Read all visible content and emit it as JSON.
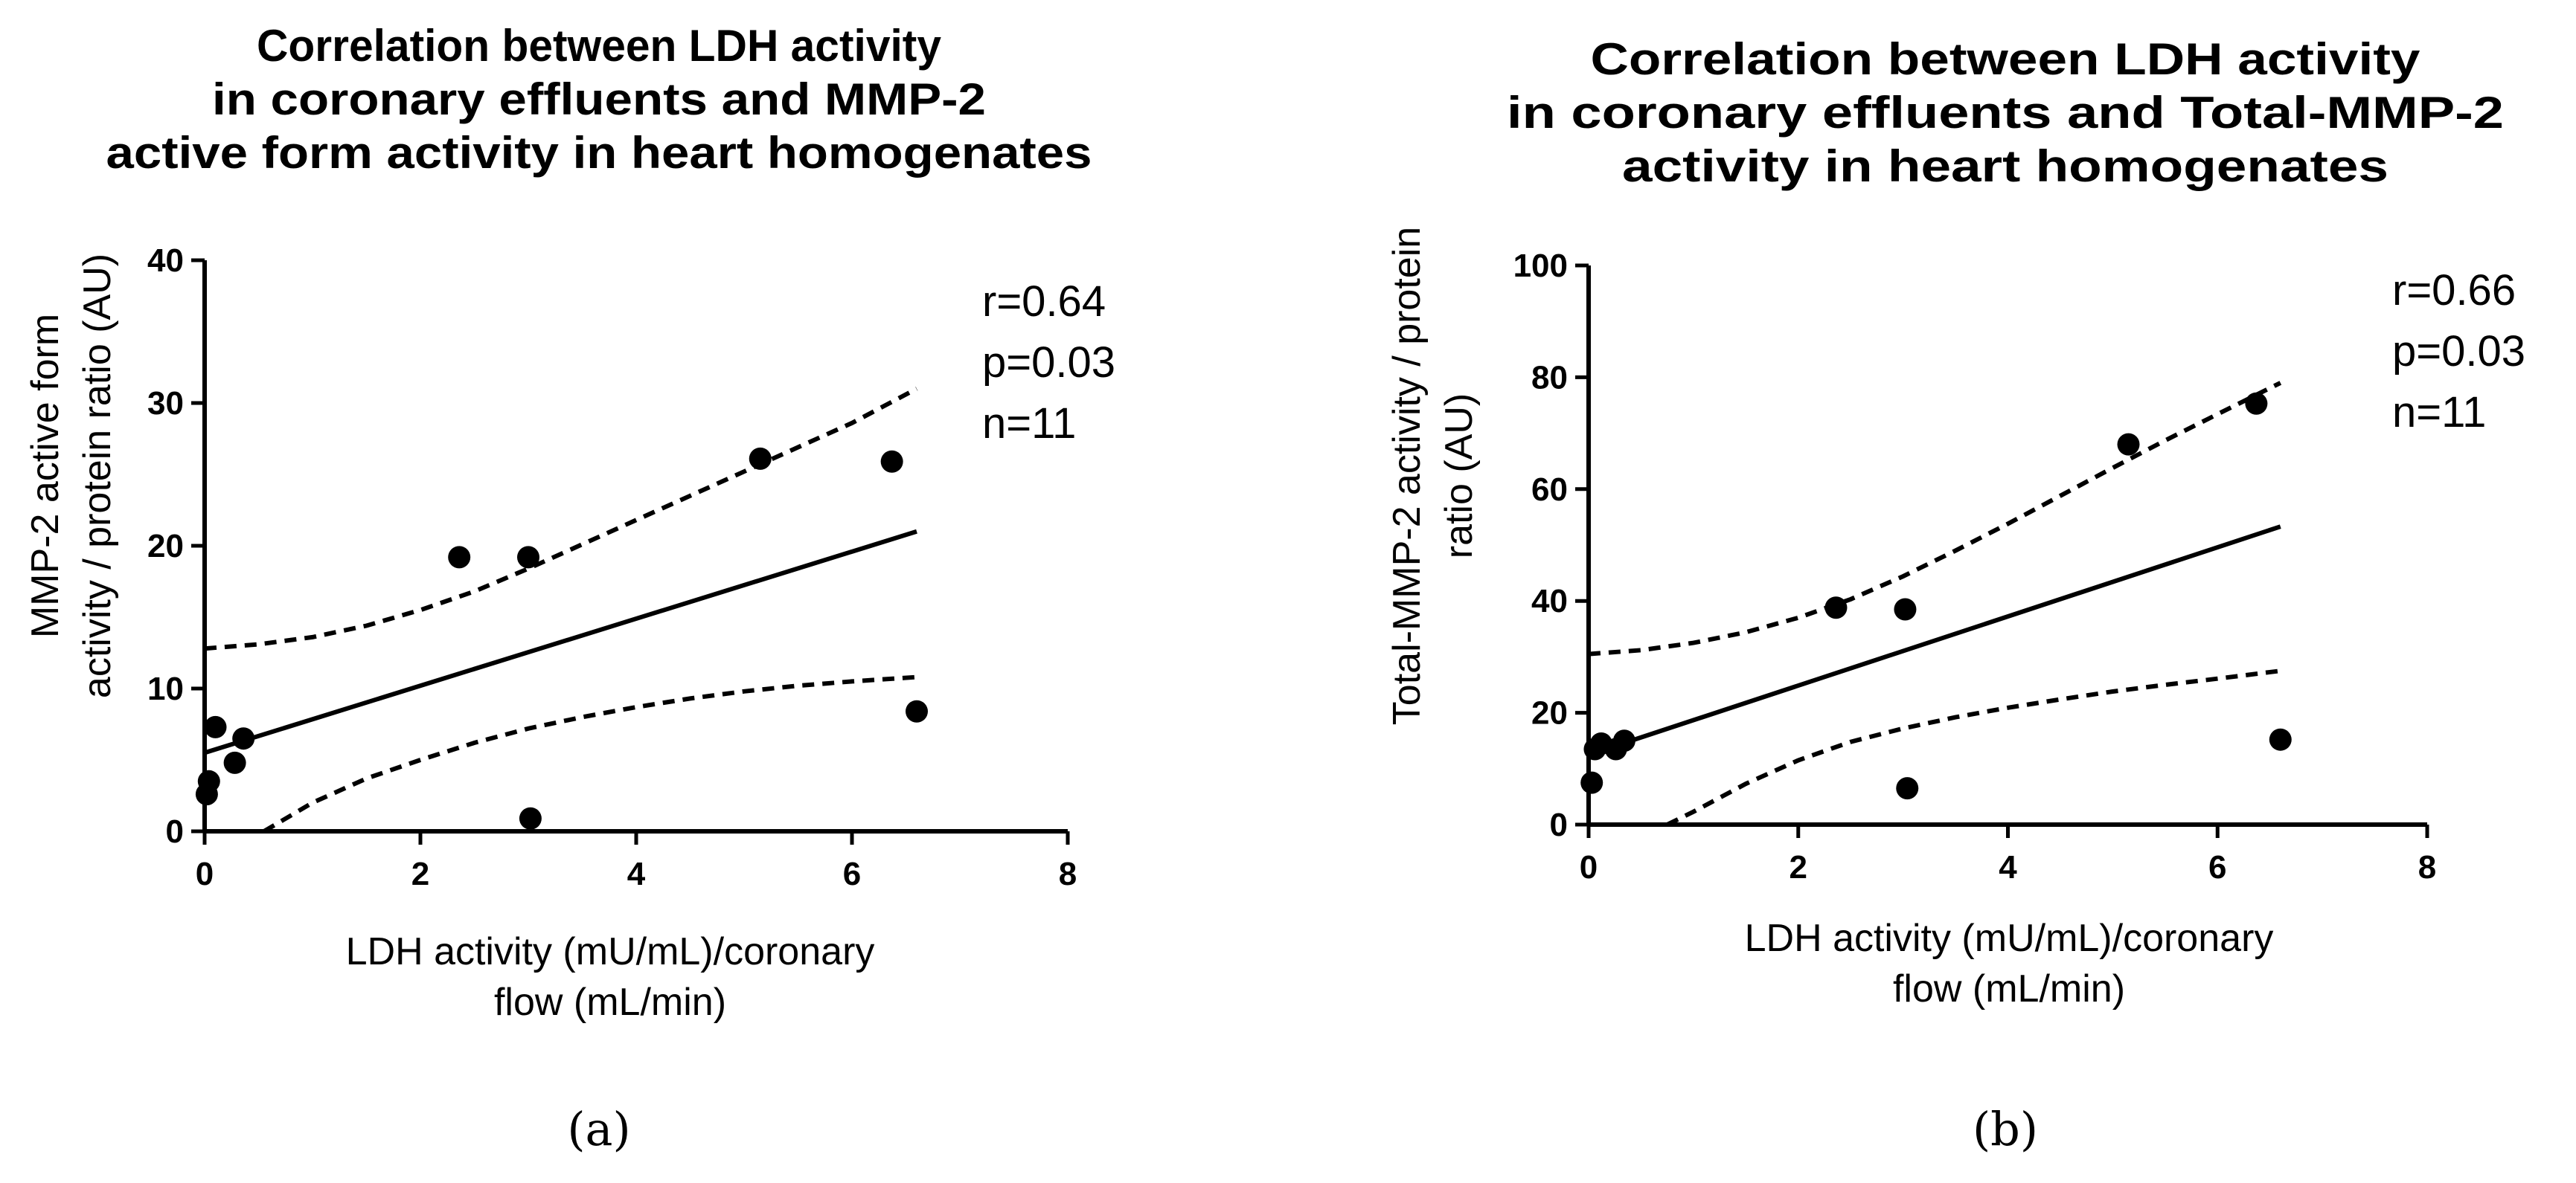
{
  "chart_data": [
    {
      "panel": "a",
      "type": "scatter",
      "title": [
        "Correlation between LDH activity",
        "in coronary effluents and MMP-2",
        "active form activity in heart homogenates"
      ],
      "xlabel": [
        "LDH activity  (mU/mL)/coronary",
        "flow (mL/min)"
      ],
      "ylabel": [
        "MMP-2 active form",
        "activity / protein ratio (AU)"
      ],
      "xlim": [
        0,
        8
      ],
      "ylim": [
        0,
        40
      ],
      "xticks": [
        0,
        2,
        4,
        6,
        8
      ],
      "yticks": [
        0,
        10,
        20,
        30,
        40
      ],
      "points": [
        {
          "x": 0.02,
          "y": 2.6
        },
        {
          "x": 0.04,
          "y": 3.5
        },
        {
          "x": 0.1,
          "y": 7.3
        },
        {
          "x": 0.28,
          "y": 4.8
        },
        {
          "x": 0.36,
          "y": 6.5
        },
        {
          "x": 2.36,
          "y": 19.2
        },
        {
          "x": 3.0,
          "y": 19.2
        },
        {
          "x": 3.02,
          "y": 0.9
        },
        {
          "x": 5.15,
          "y": 26.1
        },
        {
          "x": 6.37,
          "y": 25.9
        },
        {
          "x": 6.6,
          "y": 8.4
        }
      ],
      "regression": {
        "x": [
          0,
          6.6
        ],
        "y": [
          5.5,
          21.0
        ]
      },
      "ci_upper": {
        "x": [
          0,
          0.5,
          1,
          1.5,
          2,
          2.5,
          3,
          3.5,
          4,
          4.5,
          5,
          5.5,
          6,
          6.6
        ],
        "y": [
          12.8,
          13.1,
          13.6,
          14.4,
          15.5,
          16.8,
          18.4,
          20.1,
          21.8,
          23.5,
          25.2,
          26.9,
          28.6,
          31.0
        ]
      },
      "ci_lower": {
        "x": [
          0.55,
          1,
          1.5,
          2,
          2.5,
          3,
          3.5,
          4,
          4.5,
          5,
          5.5,
          6,
          6.6
        ],
        "y": [
          0,
          2.0,
          3.7,
          5.0,
          6.2,
          7.2,
          8.0,
          8.7,
          9.3,
          9.8,
          10.2,
          10.5,
          10.8
        ]
      },
      "stats": [
        "r=0.64",
        "p=0.03",
        "n=11"
      ],
      "label": "(a)"
    },
    {
      "panel": "b",
      "type": "scatter",
      "title": [
        "Correlation between LDH activity",
        "in coronary effluents and Total-MMP-2",
        "activity in heart homogenates"
      ],
      "xlabel": [
        "LDH activity  (mU/mL)/coronary",
        "flow (mL/min)"
      ],
      "ylabel": [
        "Total-MMP-2 activity / protein",
        "ratio (AU)"
      ],
      "xlim": [
        0,
        8
      ],
      "ylim": [
        0,
        100
      ],
      "xticks": [
        0,
        2,
        4,
        6,
        8
      ],
      "yticks": [
        0,
        20,
        40,
        60,
        80,
        100
      ],
      "points": [
        {
          "x": 0.03,
          "y": 7.5
        },
        {
          "x": 0.06,
          "y": 13.5
        },
        {
          "x": 0.12,
          "y": 14.5
        },
        {
          "x": 0.26,
          "y": 13.5
        },
        {
          "x": 0.34,
          "y": 15.0
        },
        {
          "x": 2.36,
          "y": 38.8
        },
        {
          "x": 3.02,
          "y": 38.5
        },
        {
          "x": 3.04,
          "y": 6.5
        },
        {
          "x": 5.15,
          "y": 68.0
        },
        {
          "x": 6.37,
          "y": 75.3
        },
        {
          "x": 6.6,
          "y": 15.2
        }
      ],
      "regression": {
        "x": [
          0,
          6.6
        ],
        "y": [
          12.5,
          53.3
        ]
      },
      "ci_upper": {
        "x": [
          0,
          0.5,
          1,
          1.5,
          2,
          2.5,
          3,
          3.5,
          4,
          4.5,
          5,
          5.5,
          6,
          6.6
        ],
        "y": [
          30.5,
          31.2,
          32.5,
          34.4,
          37.0,
          40.3,
          44.4,
          49.0,
          53.8,
          58.8,
          63.8,
          68.7,
          73.4,
          79.0
        ]
      },
      "ci_lower": {
        "x": [
          0.75,
          1,
          1.5,
          2,
          2.5,
          3,
          3.5,
          4,
          4.5,
          5,
          5.5,
          6,
          6.6
        ],
        "y": [
          0,
          2.3,
          7.3,
          11.5,
          14.8,
          17.2,
          19.2,
          20.9,
          22.4,
          23.8,
          25.0,
          26.1,
          27.5
        ]
      },
      "stats": [
        "r=0.66",
        "p=0.03",
        "n=11"
      ],
      "label": "(b)"
    }
  ]
}
